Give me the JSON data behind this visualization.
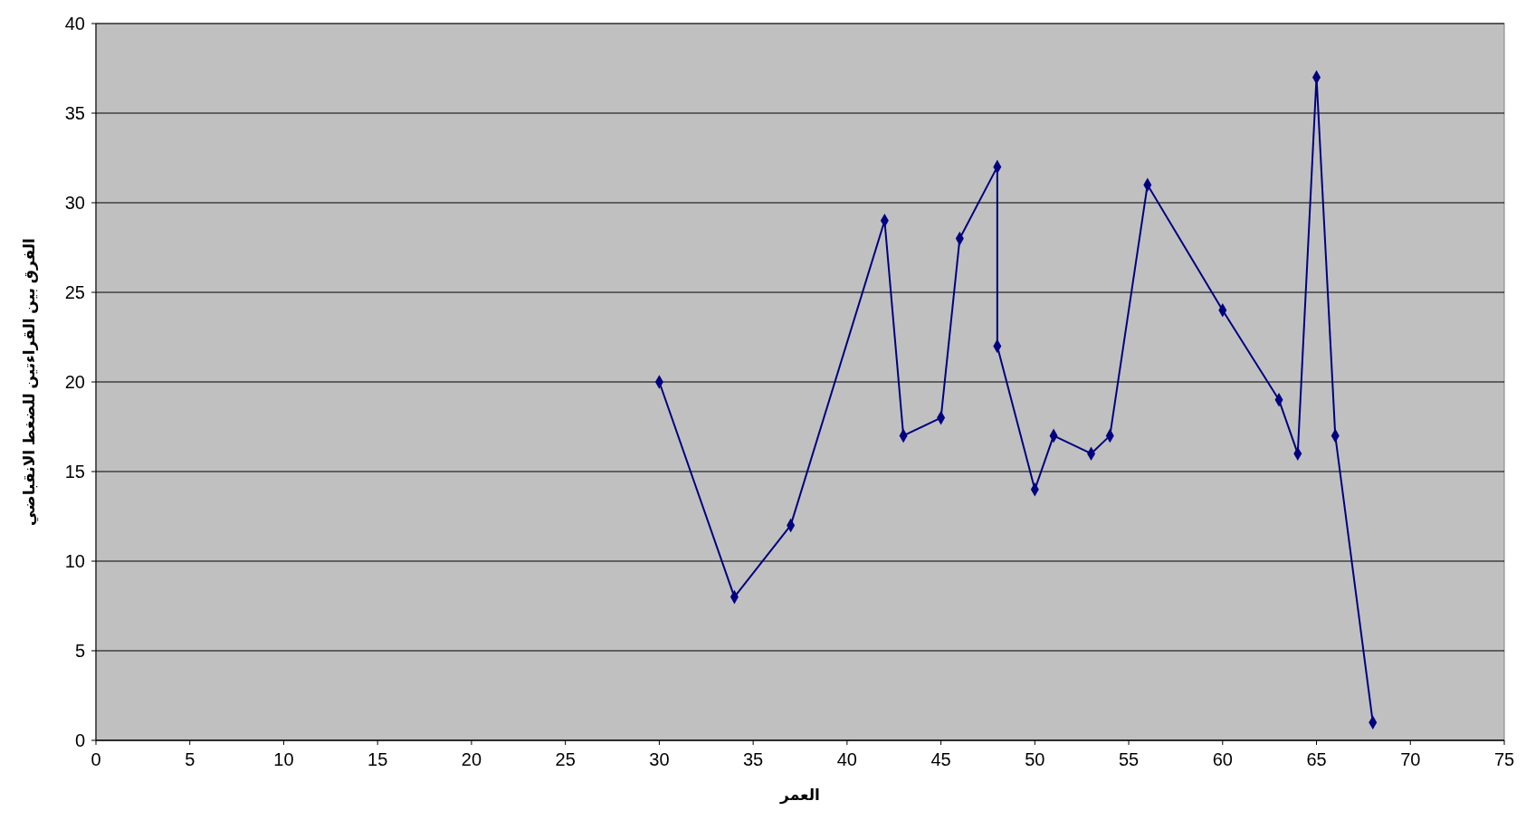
{
  "chart_data": {
    "type": "line",
    "xlabel": "العمر",
    "ylabel": "الفرق بين القراءتين للضغط الانقباضي",
    "x": [
      30,
      34,
      37,
      42,
      43,
      45,
      46,
      48,
      48,
      50,
      51,
      53,
      54,
      56,
      60,
      63,
      64,
      65,
      66,
      68
    ],
    "series": [
      {
        "color": "#000080",
        "values": [
          20,
          8,
          12,
          29,
          17,
          18,
          28,
          32,
          22,
          14,
          17,
          16,
          17,
          31,
          24,
          19,
          16,
          37,
          17,
          1
        ]
      }
    ],
    "xlim": [
      0,
      75
    ],
    "xticks": [
      0,
      5,
      10,
      15,
      20,
      25,
      30,
      35,
      40,
      45,
      50,
      55,
      60,
      65,
      70,
      75
    ],
    "ylim": [
      0,
      40
    ],
    "yticks": [
      0,
      5,
      10,
      15,
      20,
      25,
      30,
      35,
      40
    ],
    "grid": "y",
    "marker": "diamond",
    "line_style": "solid"
  }
}
